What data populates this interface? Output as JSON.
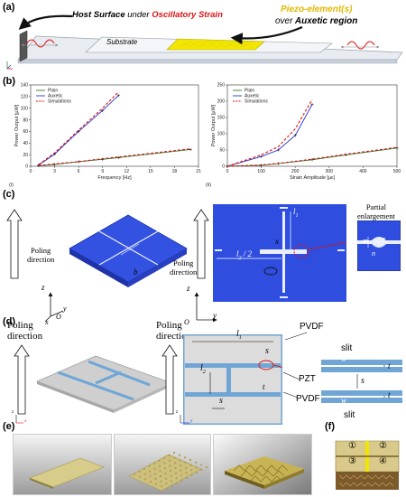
{
  "panels": {
    "a": "(a)",
    "b": "(b)",
    "c": "(c)",
    "d": "(d)",
    "e": "(e)",
    "f": "(f)"
  },
  "panel_a": {
    "host_surface": "Host Surface",
    "under": "under",
    "oscillatory_strain": "Oscillatory Strain",
    "piezo_element": "Piezo-element(s)",
    "over": "over",
    "auxetic_region": "Auxetic region",
    "substrate": "Substrate"
  },
  "chart_data": [
    {
      "type": "line",
      "sub_label": "(i)",
      "xlabel": "Frequency [Hz]",
      "ylabel": "Power Output [µW]",
      "xlim": [
        0,
        21
      ],
      "ylim": [
        0,
        140
      ],
      "xticks": [
        "0",
        "3",
        "6",
        "9",
        "12",
        "15",
        "18",
        "21"
      ],
      "yticks": [
        "0",
        "20",
        "40",
        "60",
        "80",
        "100",
        "120",
        "140"
      ],
      "legend": [
        "Plain",
        "Auxetic",
        "Simulations"
      ],
      "legend_position": "top-left",
      "series": [
        {
          "name": "Plain",
          "color": "#2e7d32",
          "x": [
            1,
            3,
            6,
            9,
            11,
            20
          ],
          "y": [
            1,
            3,
            8,
            12,
            15,
            29
          ]
        },
        {
          "name": "Auxetic",
          "color": "#2233cc",
          "x": [
            1,
            3,
            6,
            9,
            11
          ],
          "y": [
            2,
            21,
            60,
            96,
            122
          ]
        },
        {
          "name": "Simulations",
          "color": "#dd1111",
          "dashed": true,
          "x": [
            1,
            3,
            6,
            9,
            11
          ],
          "y": [
            3,
            23,
            62,
            100,
            128
          ]
        },
        {
          "name": "Simulations",
          "color": "#dd1111",
          "dashed": true,
          "x": [
            1,
            3,
            6,
            9,
            11,
            20
          ],
          "y": [
            1,
            4,
            8,
            13,
            16,
            30
          ]
        }
      ]
    },
    {
      "type": "line",
      "sub_label": "(ii)",
      "xlabel": "Strain Amplitude [µε]",
      "ylabel": "Power Output [µW]",
      "xlim": [
        0,
        500
      ],
      "ylim": [
        0,
        250
      ],
      "xticks": [
        "0",
        "100",
        "200",
        "300",
        "400",
        "500"
      ],
      "yticks": [
        "0",
        "50",
        "100",
        "150",
        "200",
        "250"
      ],
      "legend": [
        "Plain",
        "Auxetic",
        "Simulations"
      ],
      "legend_position": "top-left",
      "series": [
        {
          "name": "Plain",
          "color": "#2e7d32",
          "x": [
            0,
            100,
            150,
            250,
            350,
            500
          ],
          "y": [
            0,
            3,
            8,
            20,
            35,
            56
          ]
        },
        {
          "name": "Auxetic",
          "color": "#2233cc",
          "x": [
            0,
            100,
            150,
            200,
            250
          ],
          "y": [
            0,
            30,
            50,
            95,
            190
          ]
        },
        {
          "name": "Simulations",
          "color": "#dd1111",
          "dashed": true,
          "x": [
            0,
            100,
            150,
            200,
            250
          ],
          "y": [
            0,
            35,
            60,
            115,
            205
          ]
        },
        {
          "name": "Simulations",
          "color": "#dd1111",
          "dashed": true,
          "x": [
            0,
            100,
            150,
            250,
            350,
            500
          ],
          "y": [
            0,
            4,
            9,
            22,
            37,
            58
          ]
        }
      ]
    }
  ],
  "panel_c": {
    "poling": "Poling",
    "direction": "direction",
    "b": "b",
    "z": "z",
    "y": "y",
    "x": "x",
    "o": "O",
    "l1": "l",
    "l1_sub": "1",
    "l2half": "l",
    "l2half_sub": "2",
    "l2half_suffix": " / 2",
    "cx": "x",
    "partial": "Partial",
    "enlargement": "enlargement",
    "m": "m",
    "r0": "r",
    "r0_sub": "0",
    "n": "n"
  },
  "panel_d": {
    "poling": "Poling",
    "direction": "direction",
    "pvdf_top": "PVDF",
    "pvdf_bottom": "PVDF",
    "pzt": "PZT",
    "slit_top": "slit",
    "slit_bottom": "slit",
    "l1": "l",
    "l1_sub": "1",
    "l2": "l",
    "l2_sub": "2",
    "s": "s",
    "t": "t",
    "w": "w",
    "z": "z",
    "y": "y",
    "x": "x",
    "o": "O"
  },
  "panel_f": {
    "q1": "①",
    "q2": "②",
    "q3": "③",
    "q4": "④"
  },
  "colors": {
    "blue_plate": "#2f4ee0",
    "yellow_piezo": "#f2e600",
    "substrate": "#dfe3e8",
    "red": "#dd1111",
    "gold": "#b6a256",
    "pvdf_blue": "#6fa6d6"
  }
}
